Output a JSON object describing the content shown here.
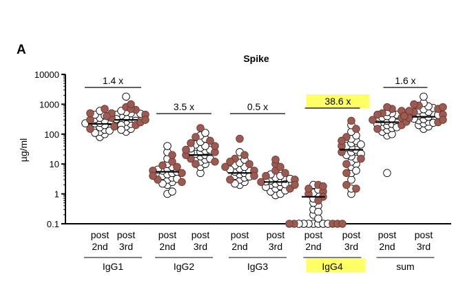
{
  "panel_letter": "A",
  "chart_data": {
    "type": "scatter",
    "title": "Spike",
    "ylabel": "µg/ml",
    "xlabel": "",
    "y_scale": "log",
    "ylim": [
      0.1,
      10000
    ],
    "y_ticks": [
      "0.1",
      "1",
      "10",
      "100",
      "1000",
      "10000"
    ],
    "y_tick_values": [
      0.1,
      1,
      10,
      100,
      1000,
      10000
    ],
    "grid": false,
    "legend": "none",
    "colors": {
      "filled": "#9b5a52",
      "open": "#ffffff",
      "highlight": "#ffff66"
    },
    "categories": [
      "post\n2nd",
      "post\n3rd"
    ],
    "groups": [
      {
        "name": "IgG1",
        "fold_change": "1.4 x",
        "highlight": false,
        "series": [
          {
            "label_line1": "post",
            "label_line2": "2nd",
            "median": 220,
            "filled": [
              150,
              300,
              500,
              700,
              400,
              260,
              180
            ],
            "open": [
              80,
              100,
              120,
              140,
              160,
              170,
              190,
              200,
              210,
              230,
              240,
              250,
              270,
              280,
              320,
              350,
              380,
              420,
              450,
              600,
              110,
              130,
              230
            ]
          },
          {
            "label_line1": "post",
            "label_line2": "3rd",
            "median": 300,
            "filled": [
              200,
              350,
              500,
              650,
              800,
              450,
              250,
              700,
              400,
              1000,
              300
            ],
            "open": [
              120,
              150,
              180,
              220,
              260,
              300,
              330,
              370,
              400,
              420,
              450,
              500,
              550,
              600,
              1800,
              200,
              280,
              320,
              480,
              140
            ]
          }
        ]
      },
      {
        "name": "IgG2",
        "fold_change": "3.5 x",
        "highlight": false,
        "series": [
          {
            "label_line1": "post",
            "label_line2": "2nd",
            "median": 5.5,
            "filled": [
              3,
              5,
              8,
              12,
              20,
              6,
              4,
              9,
              2.5
            ],
            "open": [
              1,
              1.2,
              2,
              2.5,
              3,
              3.5,
              4,
              4.5,
              5,
              6,
              7,
              8,
              10,
              15,
              25,
              40,
              3.2,
              5.5,
              6.5,
              2.2
            ]
          },
          {
            "label_line1": "post",
            "label_line2": "3rd",
            "median": 20,
            "filled": [
              10,
              15,
              25,
              40,
              60,
              160,
              20,
              30,
              12,
              50,
              80
            ],
            "open": [
              5,
              8,
              10,
              12,
              14,
              16,
              18,
              20,
              22,
              25,
              28,
              30,
              35,
              40,
              45,
              55,
              70,
              90,
              110,
              15,
              24,
              33
            ]
          }
        ]
      },
      {
        "name": "IgG3",
        "fold_change": "0.5 x",
        "highlight": false,
        "series": [
          {
            "label_line1": "post",
            "label_line2": "2nd",
            "median": 5,
            "filled": [
              3,
              6,
              10,
              15,
              70,
              4,
              8,
              20,
              12
            ],
            "open": [
              2,
              2.5,
              3,
              3.5,
              4,
              4.5,
              5,
              5.5,
              6,
              7,
              8,
              9,
              11,
              14,
              25,
              2.2,
              3.8,
              6.5
            ]
          },
          {
            "label_line1": "post",
            "label_line2": "3rd",
            "median": 2.5,
            "filled": [
              1.5,
              2.5,
              4,
              6,
              10,
              14,
              3,
              2,
              5,
              8
            ],
            "open": [
              0.9,
              1,
              1.2,
              1.5,
              1.8,
              2,
              2.2,
              2.5,
              2.8,
              3,
              3.5,
              4,
              4.5,
              1.3,
              1.7,
              2.6,
              3.2,
              2.1
            ]
          }
        ]
      },
      {
        "name": "IgG4",
        "fold_change": "38.6 x",
        "highlight": true,
        "series": [
          {
            "label_line1": "post",
            "label_line2": "2nd",
            "median": 0.8,
            "filled": [
              0.1,
              0.1,
              0.1,
              0.1,
              0.1,
              1,
              1.5,
              2,
              1.2,
              0.8,
              0.6,
              1.8
            ],
            "open": [
              0.1,
              0.1,
              0.1,
              0.1,
              0.1,
              0.1,
              0.1,
              0.2,
              0.3,
              0.4,
              0.5,
              0.7,
              0.9,
              1.1,
              1.4,
              2,
              0.25,
              0.15
            ]
          },
          {
            "label_line1": "post",
            "label_line2": "3rd",
            "median": 30,
            "filled": [
              1.5,
              2,
              5,
              15,
              40,
              80,
              150,
              280,
              25,
              60,
              10
            ],
            "open": [
              1,
              1.5,
              3,
              5,
              8,
              10,
              12,
              15,
              18,
              20,
              25,
              30,
              35,
              40,
              50,
              60,
              70,
              90,
              120,
              200,
              6,
              22,
              45
            ]
          }
        ]
      },
      {
        "name": "sum",
        "fold_change": "1.6 x",
        "highlight": false,
        "series": [
          {
            "label_line1": "post",
            "label_line2": "2nd",
            "median": 250,
            "filled": [
              200,
              350,
              500,
              700,
              800,
              150,
              300,
              450,
              260,
              600
            ],
            "open": [
              5,
              90,
              100,
              120,
              140,
              160,
              180,
              200,
              220,
              240,
              260,
              280,
              300,
              330,
              360,
              400,
              450,
              500,
              550,
              210,
              170
            ]
          },
          {
            "label_line1": "post",
            "label_line2": "3rd",
            "median": 380,
            "filled": [
              250,
              350,
              450,
              550,
              700,
              900,
              1000,
              300,
              400,
              600,
              800
            ],
            "open": [
              150,
              180,
              200,
              230,
              260,
              290,
              320,
              350,
              380,
              420,
              460,
              500,
              560,
              620,
              680,
              750,
              850,
              1100,
              1800,
              330,
              440,
              240
            ]
          }
        ]
      }
    ]
  }
}
